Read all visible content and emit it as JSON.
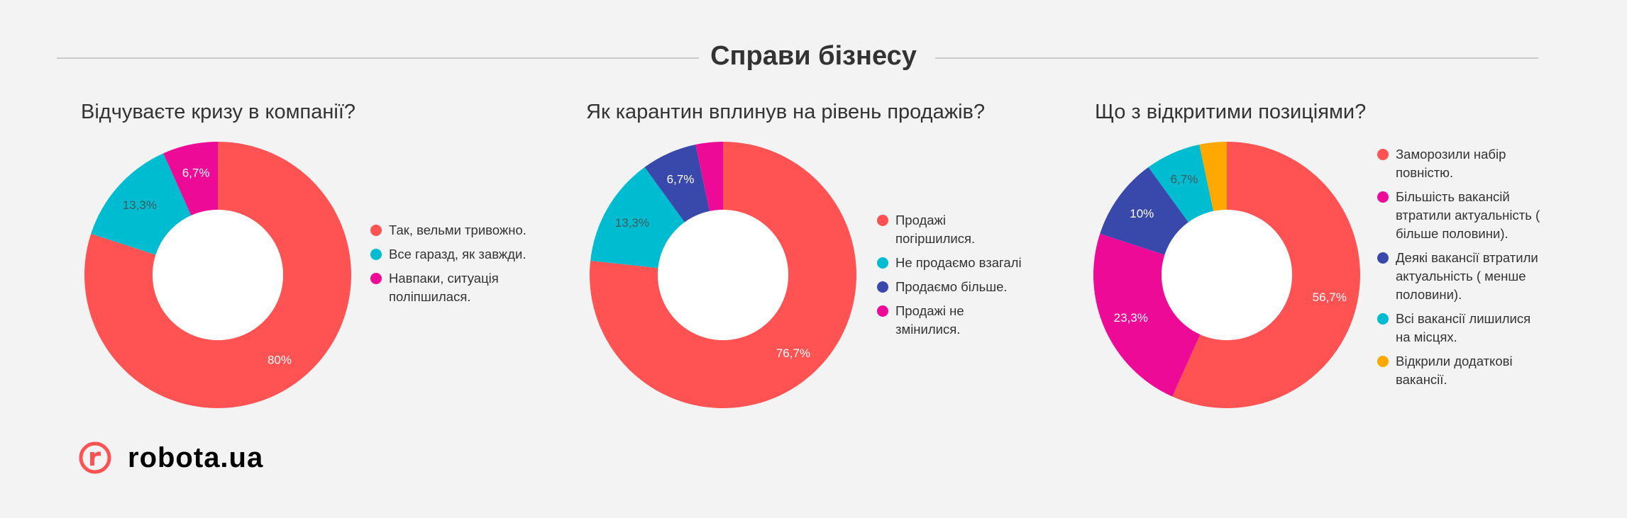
{
  "header": {
    "title": "Справи бізнесу"
  },
  "logo": {
    "text": "robota.ua"
  },
  "colors": {
    "red": "#ff5252",
    "teal": "#00bcd0",
    "magenta": "#ec0a97",
    "navy": "#3949ab",
    "orange": "#ffa800"
  },
  "chart_data": [
    {
      "type": "pie",
      "donut": true,
      "title": "Відчуваєте кризу в компанії?",
      "legend_position": "right",
      "slices": [
        {
          "label": "Так, вельми тривожно.",
          "value": 80,
          "value_label": "80%",
          "color": "#ff5252"
        },
        {
          "label": "Все гаразд, як завжди.",
          "value": 13.3,
          "value_label": "13,3%",
          "color": "#00bcd0"
        },
        {
          "label": "Навпаки, ситуація поліпшилася.",
          "value": 6.7,
          "value_label": "6,7%",
          "color": "#ec0a97"
        }
      ]
    },
    {
      "type": "pie",
      "donut": true,
      "title": "Як карантин вплинув на рівень продажів?",
      "legend_position": "right",
      "slices": [
        {
          "label": "Продажі погіршилися.",
          "value": 76.7,
          "value_label": "76,7%",
          "color": "#ff5252"
        },
        {
          "label": "Не продаємо взагалі",
          "value": 13.3,
          "value_label": "13,3%",
          "color": "#00bcd0"
        },
        {
          "label": "Продаємо більше.",
          "value": 6.7,
          "value_label": "6,7%",
          "color": "#3949ab"
        },
        {
          "label": "Продажі не змінилися.",
          "value": 3.3,
          "value_label": "",
          "color": "#ec0a97"
        }
      ]
    },
    {
      "type": "pie",
      "donut": true,
      "title": "Що з відкритими позиціями?",
      "legend_position": "right",
      "slices": [
        {
          "label": "Заморозили набір повністю.",
          "value": 56.7,
          "value_label": "56,7%",
          "color": "#ff5252"
        },
        {
          "label": "Більшість вакансій втратили актуальність ( більше половини).",
          "value": 23.3,
          "value_label": "23,3%",
          "color": "#ec0a97"
        },
        {
          "label": "Деякі вакансії втратили актуальність ( менше половини).",
          "value": 10,
          "value_label": "10%",
          "color": "#3949ab"
        },
        {
          "label": "Всі вакансії лишилися на місцях.",
          "value": 6.7,
          "value_label": "6,7%",
          "color": "#00bcd0"
        },
        {
          "label": "Відкрили додаткові вакансії.",
          "value": 3.3,
          "value_label": "",
          "color": "#ffa800"
        }
      ]
    }
  ]
}
